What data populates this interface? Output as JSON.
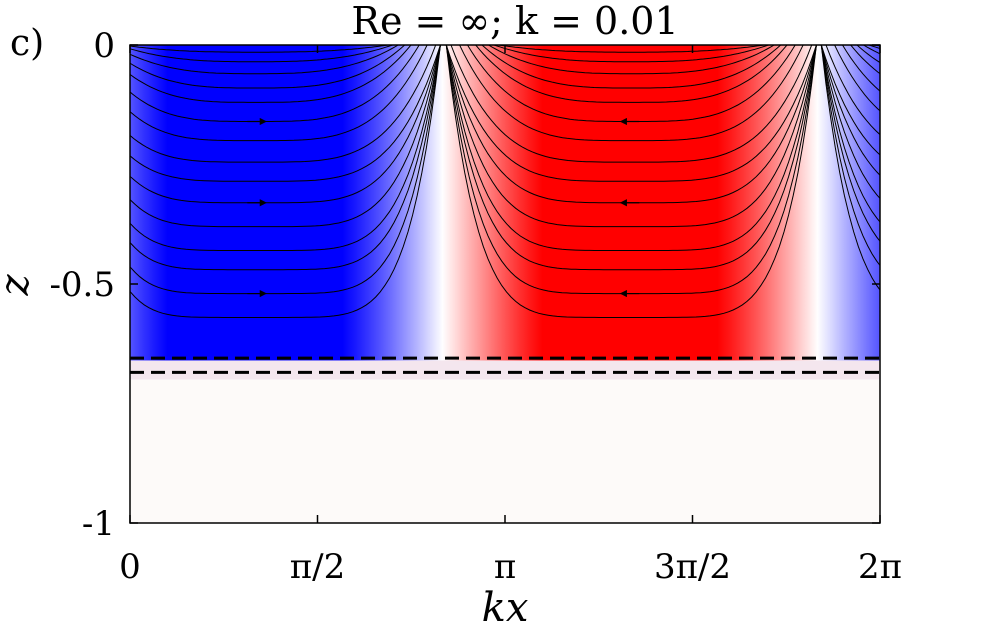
{
  "chart_data": {
    "type": "heatmap",
    "panel_label": "c)",
    "title": "Re = ∞; k = 0.01",
    "xlabel": "kx",
    "ylabel": "z",
    "xlim": [
      0,
      6.2832
    ],
    "ylim": [
      -1,
      0
    ],
    "x_ticks": [
      {
        "value": 0,
        "label": "0"
      },
      {
        "value": 1.5708,
        "label": "π/2"
      },
      {
        "value": 3.1416,
        "label": "π"
      },
      {
        "value": 4.7124,
        "label": "3π/2"
      },
      {
        "value": 6.2832,
        "label": "2π"
      }
    ],
    "y_ticks": [
      {
        "value": 0,
        "label": "0"
      },
      {
        "value": -0.5,
        "label": "-0.5"
      },
      {
        "value": -1,
        "label": "-1"
      }
    ],
    "field": {
      "description_colors": {
        "negative": "#0000ff",
        "positive": "#ff0000",
        "zero": "#ffffff"
      },
      "phase_zero_crossing_kx": [
        2.65,
        5.8
      ],
      "upper_layer_bottom_z": -0.66,
      "lower_layer_top_z": -0.7
    },
    "interface_lines_z": [
      -0.655,
      -0.685
    ],
    "streamlines": {
      "left_cell_center_kx": 1.05,
      "right_cell_center_kx": 4.2,
      "arrow_z": [
        -0.16,
        -0.33,
        -0.52
      ]
    }
  }
}
